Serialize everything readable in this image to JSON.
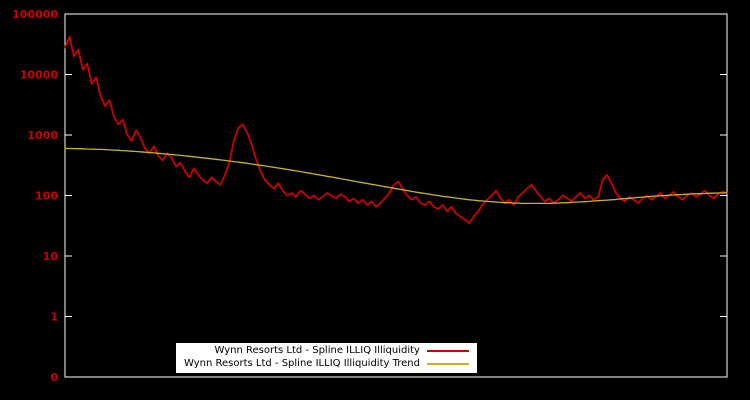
{
  "colors": {
    "background": "#000000",
    "axis_border": "#ffffff",
    "tick_label": "#cc0000",
    "series_red": "#cc0000",
    "series_trend": "#c8b22a",
    "legend_bg": "#ffffff",
    "legend_text": "#000000"
  },
  "chart_data": {
    "type": "line",
    "title": "",
    "xlabel": "",
    "ylabel": "",
    "y_scale": "log",
    "grid": false,
    "legend_position": "bottom-center",
    "y_tick_labels": [
      "100000",
      "10000",
      "1000",
      "100",
      "10",
      "1",
      "0"
    ],
    "y_tick_values": [
      100000,
      10000,
      1000,
      100,
      10,
      1,
      0.1
    ],
    "ylim": [
      0.1,
      100000
    ],
    "series": [
      {
        "name": "Wynn Resorts Ltd - Spline ILLIQ Illiquidity",
        "color": "#cc0000",
        "width": 1.8,
        "values": [
          28000,
          42000,
          20000,
          26000,
          12000,
          15000,
          7000,
          9000,
          4500,
          3000,
          3800,
          2000,
          1500,
          1800,
          1000,
          800,
          1200,
          900,
          600,
          500,
          650,
          450,
          380,
          500,
          420,
          300,
          350,
          250,
          200,
          280,
          220,
          180,
          160,
          200,
          170,
          150,
          220,
          350,
          800,
          1300,
          1500,
          1100,
          700,
          400,
          250,
          180,
          150,
          130,
          160,
          120,
          100,
          110,
          95,
          120,
          105,
          90,
          100,
          85,
          95,
          110,
          100,
          90,
          105,
          95,
          80,
          90,
          75,
          85,
          70,
          80,
          65,
          75,
          90,
          110,
          150,
          170,
          130,
          100,
          85,
          95,
          75,
          70,
          80,
          65,
          60,
          70,
          55,
          65,
          50,
          45,
          40,
          35,
          45,
          55,
          70,
          85,
          100,
          120,
          90,
          75,
          85,
          70,
          95,
          110,
          130,
          150,
          120,
          95,
          80,
          90,
          75,
          85,
          100,
          90,
          80,
          95,
          110,
          90,
          100,
          85,
          95,
          180,
          220,
          160,
          110,
          90,
          80,
          95,
          85,
          75,
          90,
          100,
          85,
          95,
          110,
          90,
          100,
          115,
          95,
          85,
          100,
          110,
          95,
          105,
          120,
          100,
          90,
          105,
          115,
          110
        ]
      },
      {
        "name": "Wynn Resorts Ltd - Spline ILLIQ Illiquidity Trend",
        "color": "#c8b22a",
        "width": 1.3,
        "values": [
          600,
          598,
          596,
          594,
          591,
          588,
          585,
          581,
          577,
          573,
          568,
          563,
          558,
          552,
          546,
          540,
          534,
          527,
          520,
          513,
          506,
          499,
          491,
          484,
          476,
          468,
          460,
          452,
          444,
          436,
          428,
          420,
          412,
          404,
          396,
          388,
          380,
          372,
          364,
          356,
          348,
          340,
          332,
          324,
          316,
          308,
          300,
          292,
          285,
          277,
          270,
          262,
          255,
          248,
          241,
          234,
          227,
          221,
          214,
          208,
          202,
          196,
          190,
          184,
          179,
          173,
          168,
          163,
          158,
          153,
          149,
          144,
          140,
          136,
          132,
          128,
          124,
          121,
          117,
          114,
          111,
          108,
          105,
          102,
          100,
          97,
          95,
          93,
          91,
          89,
          87,
          85,
          84,
          82,
          81,
          80,
          79,
          78,
          77,
          76,
          76,
          75,
          75,
          74,
          74,
          74,
          74,
          74,
          74,
          74,
          75,
          75,
          76,
          76,
          77,
          78,
          78,
          79,
          80,
          81,
          82,
          83,
          84,
          85,
          86,
          88,
          89,
          90,
          91,
          93,
          94,
          95,
          97,
          98,
          99,
          100,
          101,
          102,
          103,
          104,
          105,
          106,
          107,
          107,
          108,
          109,
          109,
          110,
          110,
          111
        ]
      }
    ]
  }
}
